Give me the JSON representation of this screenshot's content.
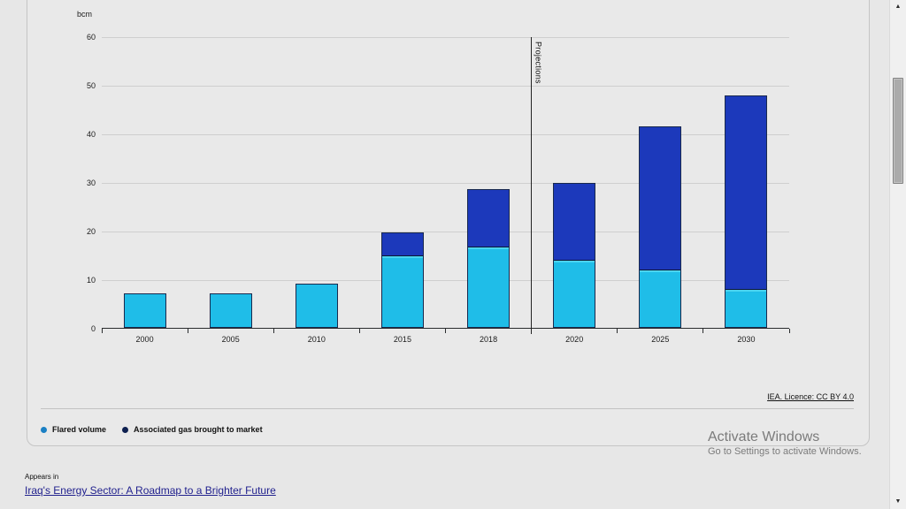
{
  "page": {
    "licence_link": "IEA. Licence: CC BY 4.0",
    "activate_windows": {
      "title": "Activate Windows",
      "subtitle": "Go to Settings to activate Windows."
    },
    "appears_in": {
      "label": "Appears in",
      "link": "Iraq's Energy Sector: A Roadmap to a Brighter Future"
    },
    "scrollbar": {
      "up_arrow": "▲",
      "down_arrow": "▼"
    }
  },
  "chart_data": {
    "type": "bar",
    "stacked": true,
    "unit_label": "bcm",
    "categories": [
      "2000",
      "2005",
      "2010",
      "2015",
      "2018",
      "2020",
      "2025",
      "2030"
    ],
    "series": [
      {
        "name": "Flared volume",
        "color": "#1fbde8",
        "legend_dot_color": "#1b80c4",
        "values": [
          7,
          7,
          9,
          15,
          16.7,
          14,
          12,
          8
        ]
      },
      {
        "name": "Associated gas brought to market",
        "color": "#1c39bb",
        "legend_dot_color": "#0e2050",
        "values": [
          0,
          0,
          0,
          4.7,
          11.8,
          15.8,
          29.4,
          39.8
        ]
      }
    ],
    "ylim": [
      0,
      60
    ],
    "yticks": [
      0,
      10,
      20,
      30,
      40,
      50,
      60
    ],
    "grid": true,
    "legend_position": "bottom-left",
    "annotation": {
      "label": "Projections",
      "after_category": "2018"
    }
  }
}
